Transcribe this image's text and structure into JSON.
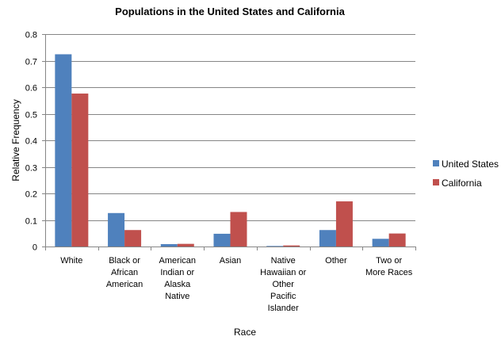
{
  "chart_data": {
    "type": "bar",
    "title": "Populations in the United States and California",
    "xlabel": "Race",
    "ylabel": "Relative Frequency",
    "ylim": [
      0,
      0.8
    ],
    "yticks": [
      "0",
      "0.1",
      "0.2",
      "0.3",
      "0.4",
      "0.5",
      "0.6",
      "0.7",
      "0.8"
    ],
    "grid": "horizontal",
    "legend_position": "right",
    "categories": [
      "White",
      "Black or African American",
      "American Indian or Alaska Native",
      "Asian",
      "Native Hawaiian or Other Pacific Islander",
      "Other",
      "Two or More Races"
    ],
    "category_lines": [
      [
        "White"
      ],
      [
        "Black or",
        "African",
        "American"
      ],
      [
        "American",
        "Indian or",
        "Alaska",
        "Native"
      ],
      [
        "Asian"
      ],
      [
        "Native",
        "Hawaiian or",
        "Other",
        "Pacific",
        "Islander"
      ],
      [
        "Other"
      ],
      [
        "Two or",
        "More Races"
      ]
    ],
    "series": [
      {
        "name": "United States",
        "color": "#4f81bd",
        "values": [
          0.724,
          0.126,
          0.009,
          0.048,
          0.002,
          0.062,
          0.029
        ]
      },
      {
        "name": "California",
        "color": "#c0504d",
        "values": [
          0.576,
          0.062,
          0.01,
          0.13,
          0.004,
          0.17,
          0.049
        ]
      }
    ]
  }
}
